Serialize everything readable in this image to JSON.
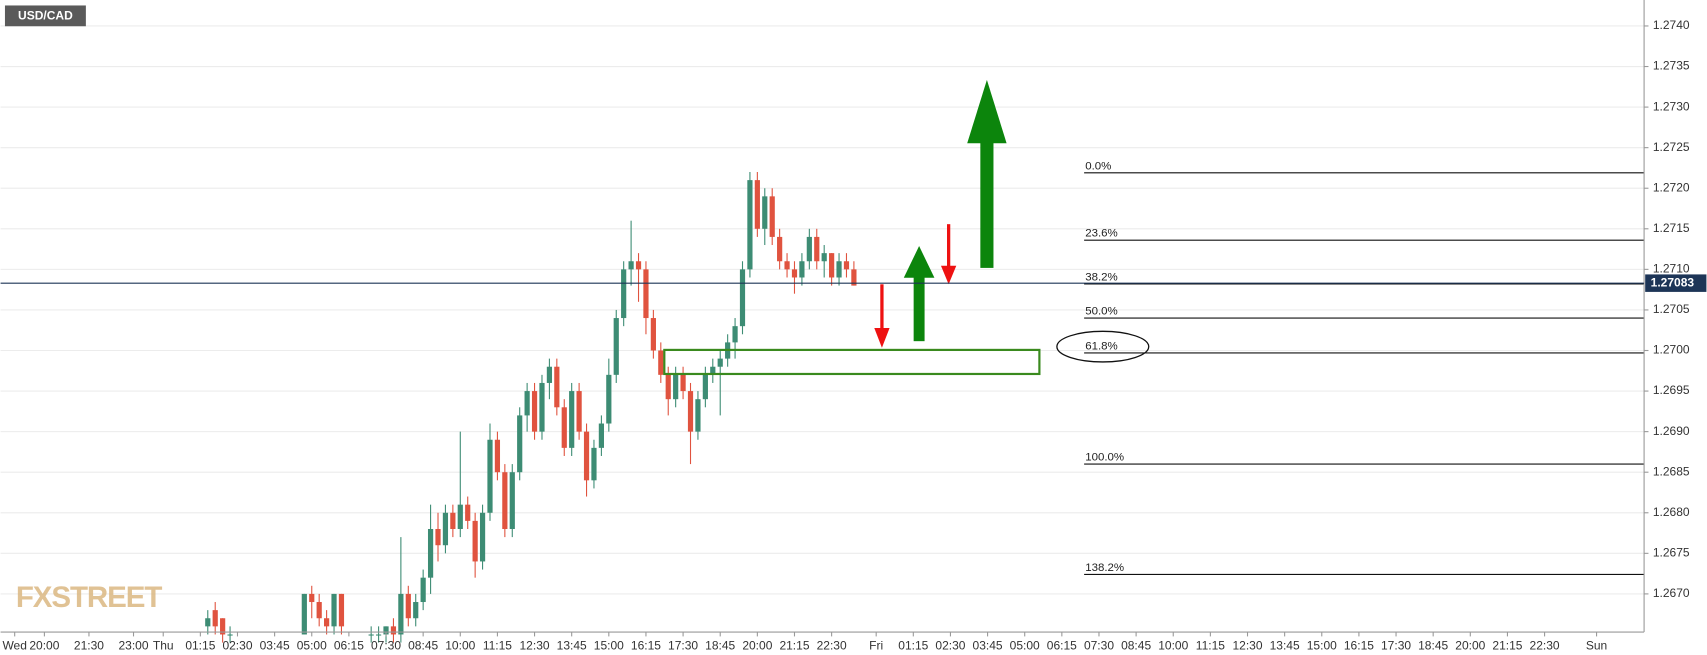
{
  "chart_data": {
    "type": "candlestick",
    "title": "USD/CAD",
    "watermark": "FXSTREET",
    "x": [
      22,
      23,
      24,
      25,
      35,
      36,
      37,
      38,
      39,
      40,
      44,
      45,
      46,
      47,
      48,
      49,
      50,
      51,
      52,
      53,
      54,
      55,
      56,
      57,
      58,
      59,
      60,
      61,
      62,
      63,
      64,
      65,
      66,
      67,
      68,
      69,
      70,
      71,
      72,
      73,
      74,
      75,
      76,
      77,
      78,
      79,
      80,
      81,
      82,
      83,
      84,
      85,
      86,
      87,
      88,
      89,
      90,
      91,
      92,
      93,
      94,
      95,
      96,
      97,
      98,
      99,
      100,
      101,
      102,
      103,
      104,
      105,
      106,
      107,
      108,
      109
    ],
    "open": [
      1.2666,
      1.2668,
      1.2667,
      1.2665,
      1.2665,
      1.267,
      1.2669,
      1.2667,
      1.2666,
      1.267,
      1.2665,
      1.2665,
      1.2665,
      1.2666,
      1.2665,
      1.267,
      1.2667,
      1.2669,
      1.2672,
      1.2678,
      1.2676,
      1.268,
      1.2678,
      1.2681,
      1.2679,
      1.2674,
      1.268,
      1.2689,
      1.2685,
      1.2678,
      1.2685,
      1.2692,
      1.2695,
      1.269,
      1.2696,
      1.2698,
      1.2693,
      1.2688,
      1.2695,
      1.269,
      1.2684,
      1.2688,
      1.2691,
      1.2697,
      1.2704,
      1.271,
      1.2711,
      1.271,
      1.2704,
      1.27,
      1.2697,
      1.2694,
      1.2697,
      1.2695,
      1.269,
      1.2694,
      1.2697,
      1.2698,
      1.2699,
      1.2701,
      1.2703,
      1.271,
      1.2721,
      1.2715,
      1.2719,
      1.2714,
      1.2711,
      1.271,
      1.2709,
      1.2711,
      1.2714,
      1.2711,
      1.2712,
      1.2709,
      1.2711,
      1.271
    ],
    "high": [
      1.2668,
      1.2669,
      1.2667,
      1.2666,
      1.267,
      1.2671,
      1.267,
      1.2668,
      1.267,
      1.267,
      1.2666,
      1.2666,
      1.2666,
      1.2667,
      1.2677,
      1.2671,
      1.267,
      1.2673,
      1.2681,
      1.268,
      1.2681,
      1.2681,
      1.269,
      1.2682,
      1.268,
      1.2681,
      1.2691,
      1.269,
      1.2686,
      1.2686,
      1.2693,
      1.2696,
      1.2696,
      1.2697,
      1.2699,
      1.2699,
      1.2694,
      1.2696,
      1.2696,
      1.2691,
      1.2689,
      1.2692,
      1.2699,
      1.2705,
      1.2711,
      1.2716,
      1.2712,
      1.2711,
      1.2705,
      1.2701,
      1.2698,
      1.2698,
      1.2698,
      1.2696,
      1.2695,
      1.2698,
      1.2699,
      1.27,
      1.2702,
      1.2704,
      1.2711,
      1.2722,
      1.2722,
      1.272,
      1.272,
      1.2715,
      1.2712,
      1.2711,
      1.2712,
      1.2715,
      1.2715,
      1.2713,
      1.2712,
      1.2712,
      1.2712,
      1.2711
    ],
    "low": [
      1.2665,
      1.2665,
      1.2664,
      1.2664,
      1.2665,
      1.2667,
      1.2666,
      1.2665,
      1.2665,
      1.2665,
      1.2664,
      1.2664,
      1.2664,
      1.2664,
      1.2664,
      1.2666,
      1.2666,
      1.2668,
      1.267,
      1.2674,
      1.2675,
      1.2677,
      1.2677,
      1.2678,
      1.2672,
      1.2673,
      1.2679,
      1.2684,
      1.2677,
      1.2677,
      1.2684,
      1.269,
      1.2689,
      1.2689,
      1.2694,
      1.2692,
      1.2687,
      1.2687,
      1.2689,
      1.2682,
      1.2683,
      1.2687,
      1.269,
      1.2696,
      1.2703,
      1.2708,
      1.2706,
      1.2702,
      1.2699,
      1.2696,
      1.2692,
      1.2693,
      1.2694,
      1.2686,
      1.2689,
      1.2693,
      1.2696,
      1.2692,
      1.2698,
      1.2699,
      1.2702,
      1.2709,
      1.2714,
      1.2713,
      1.2713,
      1.271,
      1.2709,
      1.2707,
      1.2708,
      1.271,
      1.271,
      1.2709,
      1.2708,
      1.2708,
      1.2709,
      1.2708
    ],
    "close": [
      1.2667,
      1.2666,
      1.2665,
      1.2665,
      1.267,
      1.2669,
      1.2667,
      1.2666,
      1.267,
      1.2666,
      1.2665,
      1.2665,
      1.2666,
      1.2665,
      1.267,
      1.2667,
      1.2669,
      1.2672,
      1.2678,
      1.2676,
      1.268,
      1.2678,
      1.2681,
      1.2679,
      1.2674,
      1.268,
      1.2689,
      1.2685,
      1.2678,
      1.2685,
      1.2692,
      1.2695,
      1.269,
      1.2696,
      1.2698,
      1.2693,
      1.2688,
      1.2695,
      1.269,
      1.2684,
      1.2688,
      1.2691,
      1.2697,
      1.2704,
      1.271,
      1.2711,
      1.271,
      1.2704,
      1.27,
      1.2697,
      1.2694,
      1.2697,
      1.2695,
      1.269,
      1.2694,
      1.2697,
      1.2698,
      1.2699,
      1.2701,
      1.2703,
      1.271,
      1.2721,
      1.2715,
      1.2719,
      1.2714,
      1.2711,
      1.271,
      1.2709,
      1.2711,
      1.2714,
      1.2711,
      1.2712,
      1.2709,
      1.2711,
      1.271,
      1.2708
    ],
    "up_color": "#3d8c74",
    "down_color": "#e0533f",
    "xlim": [
      -5.9,
      215.4
    ],
    "xticks": [
      {
        "value": -4,
        "label": "Wed"
      },
      {
        "value": 0,
        "label": "20:00"
      },
      {
        "value": 6,
        "label": "21:30"
      },
      {
        "value": 12,
        "label": "23:00"
      },
      {
        "value": 16,
        "label": "Thu"
      },
      {
        "value": 21,
        "label": "01:15"
      },
      {
        "value": 26,
        "label": "02:30"
      },
      {
        "value": 31,
        "label": "03:45"
      },
      {
        "value": 36,
        "label": "05:00"
      },
      {
        "value": 41,
        "label": "06:15"
      },
      {
        "value": 46,
        "label": "07:30"
      },
      {
        "value": 51,
        "label": "08:45"
      },
      {
        "value": 56,
        "label": "10:00"
      },
      {
        "value": 61,
        "label": "11:15"
      },
      {
        "value": 66,
        "label": "12:30"
      },
      {
        "value": 71,
        "label": "13:45"
      },
      {
        "value": 76,
        "label": "15:00"
      },
      {
        "value": 81,
        "label": "16:15"
      },
      {
        "value": 86,
        "label": "17:30"
      },
      {
        "value": 91,
        "label": "18:45"
      },
      {
        "value": 96,
        "label": "20:00"
      },
      {
        "value": 101,
        "label": "21:15"
      },
      {
        "value": 106,
        "label": "22:30"
      },
      {
        "value": 112,
        "label": "Fri"
      },
      {
        "value": 117,
        "label": "01:15"
      },
      {
        "value": 122,
        "label": "02:30"
      },
      {
        "value": 127,
        "label": "03:45"
      },
      {
        "value": 132,
        "label": "05:00"
      },
      {
        "value": 137,
        "label": "06:15"
      },
      {
        "value": 142,
        "label": "07:30"
      },
      {
        "value": 147,
        "label": "08:45"
      },
      {
        "value": 152,
        "label": "10:00"
      },
      {
        "value": 157,
        "label": "11:15"
      },
      {
        "value": 162,
        "label": "12:30"
      },
      {
        "value": 167,
        "label": "13:45"
      },
      {
        "value": 172,
        "label": "15:00"
      },
      {
        "value": 177,
        "label": "16:15"
      },
      {
        "value": 182,
        "label": "17:30"
      },
      {
        "value": 187,
        "label": "18:45"
      },
      {
        "value": 192,
        "label": "20:00"
      },
      {
        "value": 197,
        "label": "21:15"
      },
      {
        "value": 202,
        "label": "22:30"
      },
      {
        "value": 209,
        "label": "Sun"
      }
    ],
    "ylim": [
      1.26653,
      1.27432
    ],
    "yticks": [
      {
        "value": 1.267,
        "label": "1.2670"
      },
      {
        "value": 1.2675,
        "label": "1.2675"
      },
      {
        "value": 1.268,
        "label": "1.2680"
      },
      {
        "value": 1.2685,
        "label": "1.2685"
      },
      {
        "value": 1.269,
        "label": "1.2690"
      },
      {
        "value": 1.2695,
        "label": "1.2695"
      },
      {
        "value": 1.27,
        "label": "1.2700"
      },
      {
        "value": 1.2705,
        "label": "1.2705"
      },
      {
        "value": 1.271,
        "label": "1.2710"
      },
      {
        "value": 1.2715,
        "label": "1.2715"
      },
      {
        "value": 1.272,
        "label": "1.2720"
      },
      {
        "value": 1.2725,
        "label": "1.2725"
      },
      {
        "value": 1.273,
        "label": "1.2730"
      },
      {
        "value": 1.2735,
        "label": "1.2735"
      },
      {
        "value": 1.274,
        "label": "1.2740"
      }
    ],
    "grid": true,
    "last_price": 1.27083,
    "fibonacci": {
      "start_x": 140,
      "levels": [
        {
          "label": "0.0%",
          "value": 1.27219
        },
        {
          "label": "23.6%",
          "value": 1.27136
        },
        {
          "label": "38.2%",
          "value": 1.27082
        },
        {
          "label": "50.0%",
          "value": 1.2704
        },
        {
          "label": "61.8%",
          "value": 1.26997
        },
        {
          "label": "100.0%",
          "value": 1.2686
        },
        {
          "label": "138.2%",
          "value": 1.26724
        }
      ]
    }
  }
}
